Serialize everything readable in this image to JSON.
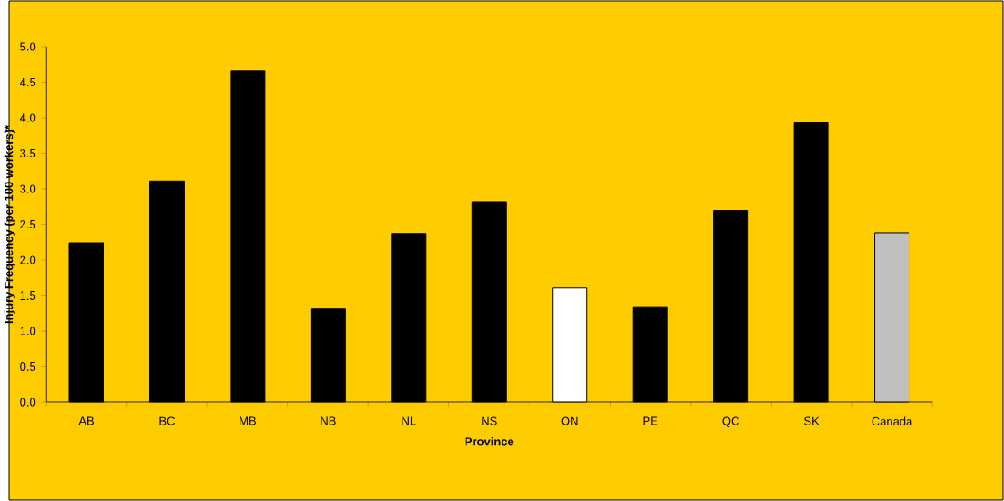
{
  "chart_data": {
    "type": "bar",
    "xlabel": "Province",
    "ylabel": "Injury Frequency (per 100 workers)*",
    "categories": [
      "AB",
      "BC",
      "MB",
      "NB",
      "NL",
      "NS",
      "ON",
      "PE",
      "QC",
      "SK",
      "Canada"
    ],
    "values": [
      2.24,
      3.11,
      4.66,
      1.32,
      2.37,
      2.81,
      1.61,
      1.34,
      2.69,
      3.93,
      2.38
    ],
    "colors": [
      "#000000",
      "#000000",
      "#000000",
      "#000000",
      "#000000",
      "#000000",
      "#ffffff",
      "#000000",
      "#000000",
      "#000000",
      "#c0c0c0"
    ],
    "ylim": [
      0,
      5
    ],
    "yticks": [
      {
        "value": 0,
        "label": "0.0"
      },
      {
        "value": 0.5,
        "label": "0.5"
      },
      {
        "value": 1,
        "label": "1.0"
      },
      {
        "value": 1.5,
        "label": "1.5"
      },
      {
        "value": 2,
        "label": "2.0"
      },
      {
        "value": 2.5,
        "label": "2.5"
      },
      {
        "value": 3,
        "label": "3.0"
      },
      {
        "value": 3.5,
        "label": "3.5"
      },
      {
        "value": 4,
        "label": "4.0"
      },
      {
        "value": 4.5,
        "label": "4.5"
      },
      {
        "value": 5,
        "label": "5.0"
      }
    ],
    "grid": false
  }
}
